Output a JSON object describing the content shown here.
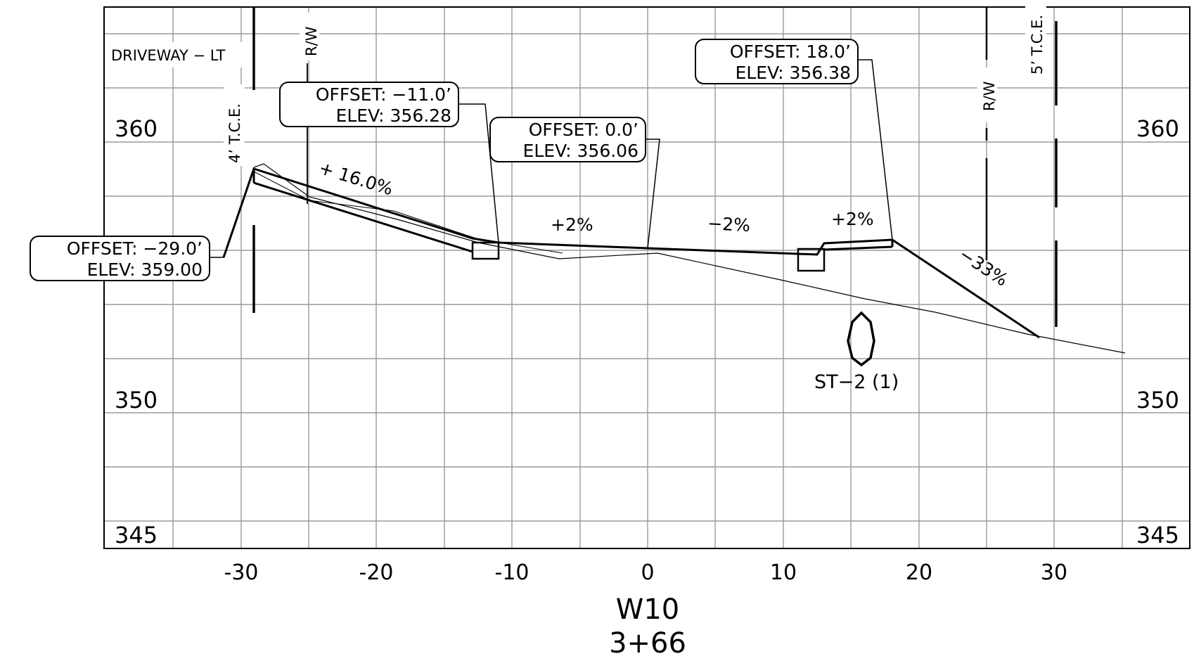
{
  "section": {
    "alignment": "W10",
    "station": "3+66"
  },
  "axes": {
    "elevation_labels": [
      "360",
      "350",
      "345"
    ],
    "offset_labels": [
      "-30",
      "-20",
      "-10",
      "0",
      "10",
      "20",
      "30"
    ]
  },
  "callouts": {
    "left_end": {
      "offset": "OFFSET:  −29.0’",
      "elev": "ELEV:  359.00"
    },
    "ditch": {
      "offset": "OFFSET:  −11.0’",
      "elev": "ELEV:  356.28"
    },
    "centerline": {
      "offset": "OFFSET:  0.0’",
      "elev": "ELEV:  356.06"
    },
    "right_shoulder": {
      "offset": "OFFSET:  18.0’",
      "elev": "ELEV:  356.38"
    }
  },
  "notes": {
    "driveway": "DRIVEWAY  −  LT",
    "row_left": "R/W",
    "row_right": "R/W",
    "tce_left": "4’ T.C.E.",
    "tce_right": "5’ T.C.E.",
    "structure": "ST−2  (1)"
  },
  "grades": {
    "driveway_slope": "+ 16.0%",
    "lane_left": "+2%",
    "lane_right": "−2%",
    "shoulder": "+2%",
    "fill_slope": "−33%"
  }
}
